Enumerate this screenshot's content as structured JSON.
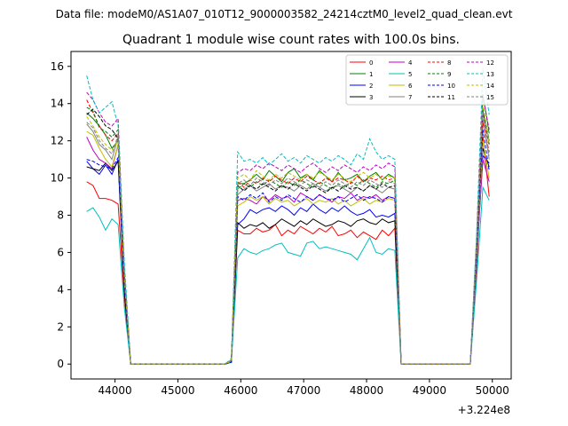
{
  "figure": {
    "suptitle": "Data file: modeM0/AS1A07_010T12_9000003582_24214cztM0_level2_quad_clean.evt",
    "title": "Quadrant 1 module wise count rates with 100.0s bins.",
    "offset_label": "+3.224e8"
  },
  "chart_data": {
    "type": "line",
    "title": "Quadrant 1 module wise count rates with 100.0s bins.",
    "xlabel": "",
    "ylabel": "",
    "x_offset": 322400000,
    "xlim": [
      43300,
      50300
    ],
    "ylim": [
      -0.8,
      16.8
    ],
    "xticks": [
      44000,
      45000,
      46000,
      47000,
      48000,
      49000,
      50000
    ],
    "yticks": [
      0,
      2,
      4,
      6,
      8,
      10,
      12,
      14,
      16
    ],
    "grid": false,
    "legend_placement": "top-right",
    "legend_columns": 4,
    "x": [
      43550,
      43650,
      43750,
      43850,
      43950,
      44050,
      44150,
      44250,
      44350,
      44450,
      44550,
      44650,
      44750,
      44850,
      44950,
      45050,
      45150,
      45250,
      45350,
      45450,
      45550,
      45650,
      45750,
      45850,
      45950,
      46050,
      46150,
      46250,
      46350,
      46450,
      46550,
      46650,
      46750,
      46850,
      46950,
      47050,
      47150,
      47250,
      47350,
      47450,
      47550,
      47650,
      47750,
      47850,
      47950,
      48050,
      48150,
      48250,
      48350,
      48450,
      48550,
      48650,
      48750,
      48850,
      48950,
      49050,
      49150,
      49250,
      49350,
      49450,
      49550,
      49650,
      49750,
      49850,
      49950
    ],
    "series": [
      {
        "name": "0",
        "color": "#ff0000",
        "dash": false,
        "values": [
          9.8,
          9.6,
          8.9,
          8.9,
          8.8,
          8.6,
          3.5,
          0,
          0,
          0,
          0,
          0,
          0,
          0,
          0,
          0,
          0,
          0,
          0,
          0,
          0,
          0,
          0,
          0.1,
          7.2,
          7.0,
          7.0,
          7.3,
          7.1,
          7.2,
          7.5,
          6.9,
          7.2,
          7.0,
          7.4,
          7.2,
          7.0,
          7.3,
          7.1,
          7.4,
          6.9,
          7.0,
          7.2,
          6.8,
          7.1,
          6.9,
          6.7,
          7.2,
          6.9,
          7.3,
          0,
          0,
          0,
          0,
          0,
          0,
          0,
          0,
          0,
          0,
          0,
          0,
          5.0,
          12.2,
          9.0
        ]
      },
      {
        "name": "1",
        "color": "#008000",
        "dash": false,
        "values": [
          13.5,
          13.2,
          12.8,
          12.3,
          11.6,
          12.0,
          4.2,
          0,
          0,
          0,
          0,
          0,
          0,
          0,
          0,
          0,
          0,
          0,
          0,
          0,
          0,
          0,
          0,
          0.2,
          9.7,
          9.7,
          9.9,
          10.2,
          9.9,
          10.4,
          10.1,
          9.8,
          10.3,
          10.5,
          10.0,
          10.2,
          9.9,
          10.4,
          10.1,
          9.8,
          10.3,
          9.9,
          10.0,
          10.2,
          9.8,
          10.1,
          10.3,
          9.9,
          10.2,
          10.0,
          0,
          0,
          0,
          0,
          0,
          0,
          0,
          0,
          0,
          0,
          0,
          0,
          6.0,
          14.5,
          12.4
        ]
      },
      {
        "name": "2",
        "color": "#0000ff",
        "dash": false,
        "values": [
          10.9,
          10.5,
          10.2,
          10.7,
          10.2,
          11.0,
          4.0,
          0,
          0,
          0,
          0,
          0,
          0,
          0,
          0,
          0,
          0,
          0,
          0,
          0,
          0,
          0,
          0,
          0.1,
          7.5,
          7.8,
          8.3,
          8.1,
          8.3,
          8.4,
          8.2,
          8.5,
          8.3,
          8.0,
          8.4,
          8.2,
          8.6,
          8.3,
          8.1,
          8.4,
          8.2,
          8.5,
          8.2,
          8.0,
          8.1,
          8.3,
          7.9,
          8.0,
          7.9,
          8.1,
          0,
          0,
          0,
          0,
          0,
          0,
          0,
          0,
          0,
          0,
          0,
          0,
          5.5,
          11.2,
          10.8
        ]
      },
      {
        "name": "3",
        "color": "#000000",
        "dash": false,
        "values": [
          10.6,
          10.5,
          10.4,
          10.8,
          10.4,
          10.9,
          3.9,
          0,
          0,
          0,
          0,
          0,
          0,
          0,
          0,
          0,
          0,
          0,
          0,
          0,
          0,
          0,
          0,
          0.1,
          7.6,
          7.3,
          7.5,
          7.4,
          7.6,
          7.3,
          7.5,
          7.8,
          7.6,
          7.4,
          7.7,
          7.5,
          7.8,
          7.6,
          7.4,
          7.5,
          7.7,
          7.6,
          7.4,
          7.7,
          7.8,
          7.6,
          7.5,
          7.8,
          7.6,
          7.7,
          0,
          0,
          0,
          0,
          0,
          0,
          0,
          0,
          0,
          0,
          0,
          0,
          5.8,
          11.6,
          10.6
        ]
      },
      {
        "name": "4",
        "color": "#bf00bf",
        "dash": false,
        "values": [
          12.2,
          11.5,
          11.0,
          10.8,
          10.5,
          11.8,
          4.5,
          0,
          0,
          0,
          0,
          0,
          0,
          0,
          0,
          0,
          0,
          0,
          0,
          0,
          0,
          0,
          0,
          0.2,
          8.8,
          8.9,
          8.8,
          8.6,
          9.0,
          8.8,
          9.1,
          8.9,
          9.0,
          8.7,
          9.2,
          9.0,
          8.8,
          9.1,
          8.9,
          8.7,
          9.0,
          8.9,
          9.2,
          8.8,
          9.0,
          8.9,
          9.1,
          8.8,
          9.0,
          8.9,
          0,
          0,
          0,
          0,
          0,
          0,
          0,
          0,
          0,
          0,
          0,
          0,
          5.8,
          11.0,
          9.8
        ]
      },
      {
        "name": "5",
        "color": "#00bfbf",
        "dash": false,
        "values": [
          8.2,
          8.4,
          7.9,
          7.2,
          7.8,
          7.5,
          3.0,
          0,
          0,
          0,
          0,
          0,
          0,
          0,
          0,
          0,
          0,
          0,
          0,
          0,
          0,
          0,
          0,
          0.1,
          5.7,
          6.2,
          6.0,
          5.9,
          6.1,
          6.2,
          6.4,
          6.5,
          6.0,
          5.9,
          5.8,
          6.5,
          6.6,
          6.2,
          6.3,
          6.2,
          6.1,
          6.0,
          5.9,
          5.6,
          6.2,
          6.8,
          6.0,
          5.9,
          6.2,
          6.1,
          0,
          0,
          0,
          0,
          0,
          0,
          0,
          0,
          0,
          0,
          0,
          0,
          4.5,
          9.5,
          8.8
        ]
      },
      {
        "name": "6",
        "color": "#bfbf00",
        "dash": false,
        "values": [
          12.5,
          12.3,
          11.6,
          11.0,
          10.6,
          11.8,
          4.4,
          0,
          0,
          0,
          0,
          0,
          0,
          0,
          0,
          0,
          0,
          0,
          0,
          0,
          0,
          0,
          0,
          0.2,
          8.5,
          8.7,
          9.0,
          8.8,
          9.0,
          8.6,
          8.9,
          8.7,
          8.8,
          8.5,
          8.7,
          8.9,
          8.6,
          8.8,
          8.7,
          8.9,
          8.6,
          8.8,
          8.5,
          8.7,
          8.9,
          8.6,
          8.8,
          8.7,
          8.9,
          8.8,
          0,
          0,
          0,
          0,
          0,
          0,
          0,
          0,
          0,
          0,
          0,
          0,
          5.6,
          12.0,
          10.0
        ]
      },
      {
        "name": "7",
        "color": "#808080",
        "dash": false,
        "values": [
          12.9,
          12.5,
          11.8,
          11.5,
          11.0,
          12.2,
          4.6,
          0,
          0,
          0,
          0,
          0,
          0,
          0,
          0,
          0,
          0,
          0,
          0,
          0,
          0,
          0,
          0,
          0.2,
          9.1,
          9.4,
          9.6,
          9.3,
          9.5,
          9.7,
          9.4,
          9.6,
          9.5,
          9.3,
          9.6,
          9.4,
          9.7,
          9.5,
          9.3,
          9.5,
          9.6,
          9.4,
          9.2,
          9.5,
          9.3,
          9.6,
          9.4,
          9.2,
          9.5,
          9.4,
          0,
          0,
          0,
          0,
          0,
          0,
          0,
          0,
          0,
          0,
          0,
          0,
          6.0,
          13.2,
          11.0
        ]
      },
      {
        "name": "8",
        "color": "#ff0000",
        "dash": true,
        "values": [
          14.2,
          13.5,
          12.8,
          12.3,
          12.0,
          12.4,
          4.7,
          0,
          0,
          0,
          0,
          0,
          0,
          0,
          0,
          0,
          0,
          0,
          0,
          0,
          0,
          0,
          0,
          0.2,
          9.8,
          9.5,
          9.9,
          9.7,
          10.0,
          9.8,
          10.1,
          9.9,
          9.7,
          10.0,
          9.8,
          10.1,
          9.9,
          9.7,
          10.0,
          9.8,
          10.0,
          9.9,
          9.7,
          10.1,
          9.8,
          10.0,
          9.9,
          10.1,
          9.9,
          10.0,
          0,
          0,
          0,
          0,
          0,
          0,
          0,
          0,
          0,
          0,
          0,
          0,
          6.2,
          13.0,
          11.4
        ]
      },
      {
        "name": "9",
        "color": "#008000",
        "dash": true,
        "values": [
          13.8,
          13.6,
          12.7,
          12.5,
          12.2,
          12.6,
          4.8,
          0,
          0,
          0,
          0,
          0,
          0,
          0,
          0,
          0,
          0,
          0,
          0,
          0,
          0,
          0,
          0,
          0.2,
          9.4,
          9.7,
          9.5,
          9.8,
          9.6,
          9.9,
          9.7,
          9.5,
          9.8,
          9.6,
          9.9,
          9.7,
          9.5,
          9.8,
          9.6,
          9.4,
          9.7,
          9.5,
          9.8,
          9.6,
          9.9,
          9.7,
          9.5,
          9.8,
          9.7,
          9.9,
          0,
          0,
          0,
          0,
          0,
          0,
          0,
          0,
          0,
          0,
          0,
          0,
          6.4,
          13.8,
          12.0
        ]
      },
      {
        "name": "10",
        "color": "#0000ff",
        "dash": true,
        "values": [
          11.0,
          10.9,
          10.7,
          10.6,
          10.5,
          11.1,
          4.2,
          0,
          0,
          0,
          0,
          0,
          0,
          0,
          0,
          0,
          0,
          0,
          0,
          0,
          0,
          0,
          0,
          0.1,
          9.0,
          8.8,
          9.1,
          8.9,
          9.2,
          8.7,
          9.0,
          8.8,
          9.1,
          8.9,
          8.7,
          9.0,
          8.8,
          9.1,
          8.9,
          8.8,
          9.0,
          8.7,
          8.9,
          9.1,
          8.8,
          9.0,
          8.9,
          8.7,
          9.0,
          8.9,
          0,
          0,
          0,
          0,
          0,
          0,
          0,
          0,
          0,
          0,
          0,
          0,
          5.8,
          12.6,
          10.4
        ]
      },
      {
        "name": "11",
        "color": "#000000",
        "dash": true,
        "values": [
          13.4,
          13.7,
          13.3,
          12.8,
          12.6,
          12.1,
          4.9,
          0,
          0,
          0,
          0,
          0,
          0,
          0,
          0,
          0,
          0,
          0,
          0,
          0,
          0,
          0,
          0,
          0.2,
          9.6,
          9.3,
          9.6,
          9.4,
          9.7,
          9.5,
          9.3,
          9.6,
          9.4,
          9.7,
          9.5,
          9.3,
          9.6,
          9.4,
          9.2,
          9.5,
          9.3,
          9.6,
          9.4,
          9.5,
          9.3,
          9.6,
          9.4,
          9.7,
          9.5,
          9.6,
          0,
          0,
          0,
          0,
          0,
          0,
          0,
          0,
          0,
          0,
          0,
          0,
          6.3,
          13.6,
          11.8
        ]
      },
      {
        "name": "12",
        "color": "#bf00bf",
        "dash": true,
        "values": [
          14.6,
          14.2,
          13.5,
          13.0,
          12.8,
          13.2,
          5.0,
          0,
          0,
          0,
          0,
          0,
          0,
          0,
          0,
          0,
          0,
          0,
          0,
          0,
          0,
          0,
          0,
          0.2,
          10.3,
          10.5,
          10.4,
          10.7,
          10.5,
          10.8,
          10.6,
          10.4,
          10.7,
          10.5,
          10.3,
          10.6,
          10.8,
          10.5,
          10.3,
          10.6,
          10.4,
          10.7,
          10.5,
          10.3,
          10.6,
          10.4,
          10.7,
          10.5,
          10.8,
          10.6,
          0,
          0,
          0,
          0,
          0,
          0,
          0,
          0,
          0,
          0,
          0,
          0,
          6.8,
          14.4,
          12.6
        ]
      },
      {
        "name": "13",
        "color": "#00bfbf",
        "dash": true,
        "values": [
          15.5,
          14.2,
          13.5,
          13.8,
          14.1,
          12.8,
          5.4,
          0,
          0,
          0,
          0,
          0,
          0,
          0,
          0,
          0,
          0,
          0,
          0,
          0,
          0,
          0,
          0,
          0.3,
          11.4,
          10.9,
          11.0,
          10.8,
          11.1,
          10.7,
          11.0,
          11.3,
          10.9,
          11.1,
          10.8,
          11.2,
          11.0,
          10.8,
          11.1,
          10.9,
          11.2,
          11.0,
          10.7,
          11.3,
          11.0,
          12.1,
          11.4,
          11.0,
          11.2,
          11.0,
          0,
          0,
          0,
          0,
          0,
          0,
          0,
          0,
          0,
          0,
          0,
          0,
          7.0,
          15.9,
          13.4
        ]
      },
      {
        "name": "14",
        "color": "#bfbf00",
        "dash": true,
        "values": [
          13.3,
          12.8,
          12.2,
          11.8,
          11.5,
          12.0,
          4.6,
          0,
          0,
          0,
          0,
          0,
          0,
          0,
          0,
          0,
          0,
          0,
          0,
          0,
          0,
          0,
          0,
          0.2,
          10.0,
          10.2,
          9.9,
          10.4,
          10.1,
          9.9,
          10.2,
          10.0,
          10.3,
          10.1,
          9.9,
          10.2,
          10.0,
          10.3,
          10.1,
          9.9,
          10.2,
          10.0,
          9.8,
          10.1,
          10.3,
          10.0,
          10.2,
          9.9,
          10.1,
          10.0,
          0,
          0,
          0,
          0,
          0,
          0,
          0,
          0,
          0,
          0,
          0,
          0,
          6.5,
          14.0,
          11.8
        ]
      },
      {
        "name": "15",
        "color": "#808080",
        "dash": true,
        "values": [
          13.0,
          12.7,
          12.0,
          11.6,
          11.3,
          12.3,
          4.7,
          0,
          0,
          0,
          0,
          0,
          0,
          0,
          0,
          0,
          0,
          0,
          0,
          0,
          0,
          0,
          0,
          0.2,
          9.7,
          9.9,
          9.6,
          10.0,
          9.8,
          9.6,
          9.9,
          9.7,
          10.0,
          9.8,
          9.6,
          9.9,
          9.7,
          9.5,
          9.8,
          9.6,
          9.9,
          9.7,
          9.5,
          9.8,
          9.6,
          9.9,
          9.7,
          9.5,
          9.8,
          9.7,
          0,
          0,
          0,
          0,
          0,
          0,
          0,
          0,
          0,
          0,
          0,
          0,
          6.2,
          13.6,
          11.2
        ]
      }
    ]
  }
}
